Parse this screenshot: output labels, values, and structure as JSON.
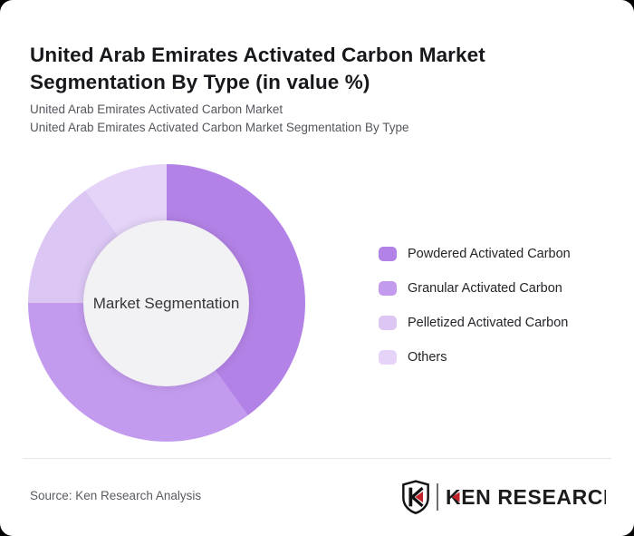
{
  "header": {
    "title": "United Arab Emirates Activated Carbon Market Segmentation By Type (in value %)",
    "subtitle_lines": [
      "United Arab Emirates Activated Carbon Market",
      "United Arab Emirates Activated Carbon Market Segmentation By Type"
    ]
  },
  "chart_data": {
    "type": "pie",
    "subtype": "donut",
    "title": "United Arab Emirates Activated Carbon Market Segmentation By Type (in value %)",
    "center_label": "Market Segmentation",
    "start_angle_deg": 0,
    "direction": "clockwise",
    "legend_position": "right",
    "data_labels_shown": false,
    "segments": [
      {
        "label": "Powdered Activated Carbon",
        "value": 40,
        "color": "#b382e6"
      },
      {
        "label": "Granular Activated Carbon",
        "value": 35,
        "color": "#c39bee"
      },
      {
        "label": "Pelletized Activated Carbon",
        "value": 15,
        "color": "#dcc6f4"
      },
      {
        "label": "Others",
        "value": 10,
        "color": "#e5d4f8"
      }
    ],
    "inner_circle_color": "#f2f1f3"
  },
  "footer": {
    "source": "Source: Ken Research Analysis",
    "logo_text": "KEN RESEARCH",
    "logo_letter": "K"
  },
  "colors": {
    "page_bg": "#000000",
    "card_bg": "#ffffff",
    "accent_red": "#c42129",
    "title_text": "#17181b",
    "subtitle_text": "#54575d"
  }
}
